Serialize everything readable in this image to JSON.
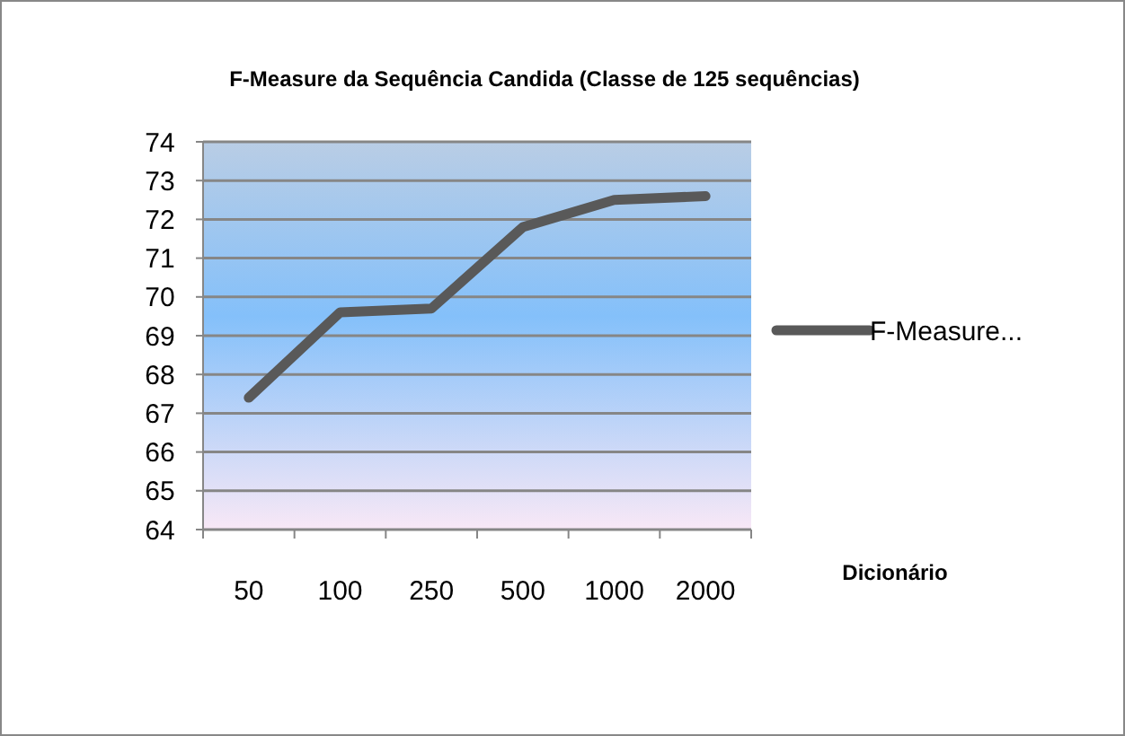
{
  "chart_data": {
    "type": "line",
    "title": "F-Measure da Sequência Candida  (Classe de 125 sequências)",
    "xlabel": "Dicionário",
    "categories": [
      "50",
      "100",
      "250",
      "500",
      "1000",
      "2000"
    ],
    "series": [
      {
        "name": "F-Measure...",
        "color": "#595959",
        "values": [
          67.4,
          69.6,
          69.7,
          71.8,
          72.5,
          72.6
        ]
      }
    ],
    "ylim": [
      64,
      74
    ],
    "yticks": [
      64,
      65,
      66,
      67,
      68,
      69,
      70,
      71,
      72,
      73,
      74
    ],
    "grid": "y",
    "legend": "right",
    "marker": "none",
    "line_style": "solid"
  }
}
